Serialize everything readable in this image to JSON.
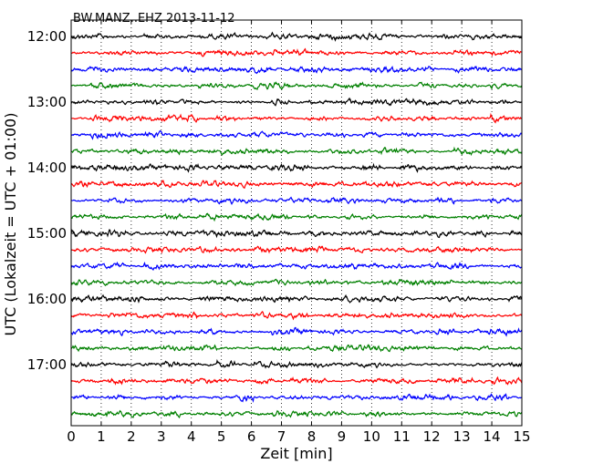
{
  "chart_data": {
    "type": "line",
    "title": "BW.MANZ..EHZ 2013-11-12",
    "xlabel": "Zeit  [min]",
    "ylabel": "UTC (Lokalzeit = UTC + 01:00)",
    "xlim": [
      0,
      15
    ],
    "x_ticks": [
      "0",
      "1",
      "2",
      "3",
      "4",
      "5",
      "6",
      "7",
      "8",
      "9",
      "10",
      "11",
      "12",
      "13",
      "14",
      "15"
    ],
    "y_ticks": [
      "12:00",
      "13:00",
      "14:00",
      "15:00",
      "16:00",
      "17:00"
    ],
    "grid": "vertical dotted",
    "minutes_per_trace": 15,
    "trace_colors": [
      "#000000",
      "#ff0000",
      "#0000ff",
      "#008000"
    ],
    "series": [
      {
        "start": "12:00",
        "color": "#000000"
      },
      {
        "start": "12:15",
        "color": "#ff0000"
      },
      {
        "start": "12:30",
        "color": "#0000ff"
      },
      {
        "start": "12:45",
        "color": "#008000"
      },
      {
        "start": "13:00",
        "color": "#000000"
      },
      {
        "start": "13:15",
        "color": "#ff0000"
      },
      {
        "start": "13:30",
        "color": "#0000ff"
      },
      {
        "start": "13:45",
        "color": "#008000"
      },
      {
        "start": "14:00",
        "color": "#000000"
      },
      {
        "start": "14:15",
        "color": "#ff0000"
      },
      {
        "start": "14:30",
        "color": "#0000ff"
      },
      {
        "start": "14:45",
        "color": "#008000"
      },
      {
        "start": "15:00",
        "color": "#000000"
      },
      {
        "start": "15:15",
        "color": "#ff0000"
      },
      {
        "start": "15:30",
        "color": "#0000ff"
      },
      {
        "start": "15:45",
        "color": "#008000"
      },
      {
        "start": "16:00",
        "color": "#000000"
      },
      {
        "start": "16:15",
        "color": "#ff0000"
      },
      {
        "start": "16:30",
        "color": "#0000ff"
      },
      {
        "start": "16:45",
        "color": "#008000"
      },
      {
        "start": "17:00",
        "color": "#000000"
      },
      {
        "start": "17:15",
        "color": "#ff0000"
      },
      {
        "start": "17:30",
        "color": "#0000ff"
      },
      {
        "start": "17:45",
        "color": "#008000"
      }
    ]
  }
}
